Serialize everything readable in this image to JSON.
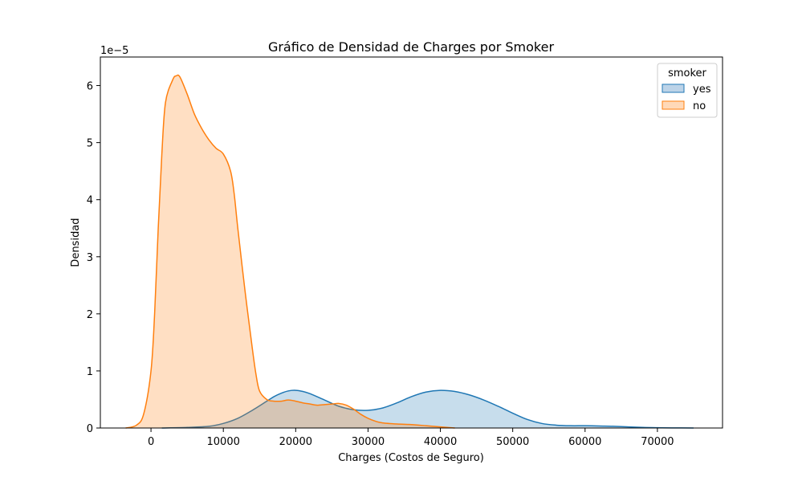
{
  "chart_data": {
    "type": "area",
    "title": "Gráfico de Densidad de Charges por Smoker",
    "xlabel": "Charges (Costos de Seguro)",
    "ylabel": "Densidad",
    "y_offset_label": "1e−5",
    "xlim": [
      -7000,
      79000
    ],
    "ylim": [
      0,
      6.5
    ],
    "x_ticks": [
      0,
      10000,
      20000,
      30000,
      40000,
      50000,
      60000,
      70000
    ],
    "x_tick_labels": [
      "0",
      "10000",
      "20000",
      "30000",
      "40000",
      "50000",
      "60000",
      "70000"
    ],
    "y_ticks": [
      0,
      1,
      2,
      3,
      4,
      5,
      6
    ],
    "y_tick_labels": [
      "0",
      "1",
      "2",
      "3",
      "4",
      "5",
      "6"
    ],
    "grid": false,
    "legend": {
      "title": "smoker",
      "placement": "top-right"
    },
    "series": [
      {
        "name": "yes",
        "color": "#1f77b4",
        "fill": "#bcd3e8",
        "x": [
          1500,
          5000,
          8000,
          10000,
          12000,
          14000,
          16000,
          17000,
          18000,
          19000,
          20000,
          21000,
          22000,
          24000,
          26000,
          28000,
          30000,
          32000,
          34000,
          36000,
          38000,
          40000,
          42000,
          44000,
          46000,
          48000,
          50000,
          52000,
          54000,
          56000,
          58000,
          60000,
          62000,
          64000,
          66000,
          68000,
          70000,
          72000,
          75000
        ],
        "y": [
          0,
          0.01,
          0.03,
          0.08,
          0.17,
          0.31,
          0.47,
          0.55,
          0.61,
          0.65,
          0.66,
          0.64,
          0.6,
          0.49,
          0.38,
          0.32,
          0.31,
          0.35,
          0.44,
          0.55,
          0.63,
          0.66,
          0.64,
          0.58,
          0.49,
          0.38,
          0.26,
          0.15,
          0.08,
          0.05,
          0.04,
          0.04,
          0.035,
          0.03,
          0.02,
          0.01,
          0.005,
          0.002,
          0
        ]
      },
      {
        "name": "no",
        "color": "#ff7f0e",
        "fill": "#ffd9b8",
        "x": [
          -3500,
          -2000,
          -1000,
          0,
          500,
          1000,
          1500,
          2000,
          3000,
          3500,
          4000,
          5000,
          6000,
          7000,
          8000,
          9000,
          10000,
          11000,
          11500,
          12000,
          13000,
          14000,
          14500,
          15000,
          16000,
          17000,
          18000,
          19000,
          20000,
          21000,
          22000,
          23000,
          24000,
          25000,
          26000,
          27000,
          28000,
          29000,
          30000,
          31000,
          32000,
          34000,
          36000,
          38000,
          40000,
          42000
        ],
        "y": [
          0,
          0.05,
          0.25,
          1.0,
          2.0,
          3.5,
          4.8,
          5.7,
          6.1,
          6.17,
          6.15,
          5.85,
          5.5,
          5.25,
          5.05,
          4.9,
          4.8,
          4.5,
          4.1,
          3.5,
          2.4,
          1.4,
          0.95,
          0.65,
          0.5,
          0.47,
          0.47,
          0.49,
          0.47,
          0.44,
          0.42,
          0.4,
          0.41,
          0.42,
          0.43,
          0.4,
          0.33,
          0.24,
          0.17,
          0.12,
          0.09,
          0.07,
          0.06,
          0.04,
          0.02,
          0
        ]
      }
    ]
  }
}
